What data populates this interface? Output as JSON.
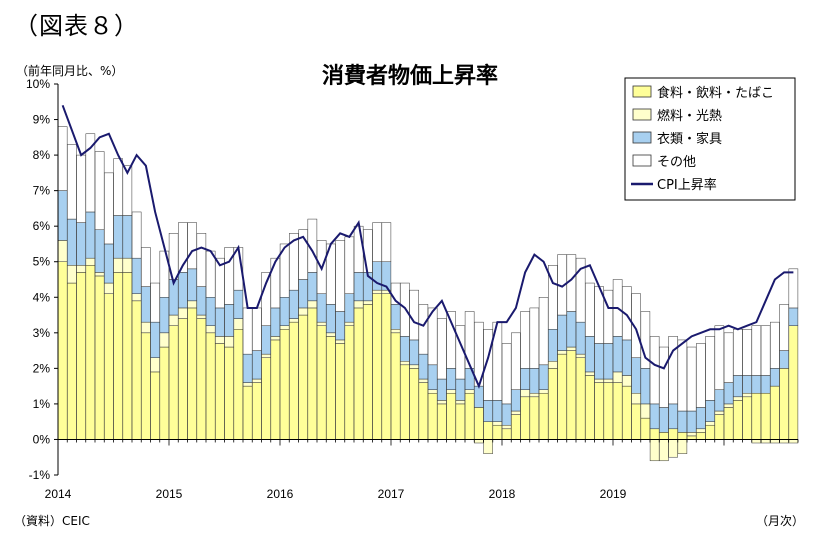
{
  "figure_label": "（図表８）",
  "source_note": "（資料）CEIC",
  "x_unit_note": "（月次）",
  "chart_data": {
    "type": "bar",
    "stacked": true,
    "title": "消費者物価上昇率",
    "ylabel": "（前年同月比、%）",
    "xlabel": "",
    "ylim": [
      -1,
      10
    ],
    "y_ticks": [
      "10%",
      "9%",
      "8%",
      "7%",
      "6%",
      "5%",
      "4%",
      "3%",
      "2%",
      "1%",
      "0%",
      "-1%"
    ],
    "x_ticks": [
      "2014",
      "2015",
      "2016",
      "2017",
      "2018",
      "2019"
    ],
    "grid": false,
    "legend_position": "top-right",
    "series": [
      {
        "name": "食料・飲料・たばこ",
        "color": "#ffff99",
        "kind": "bar",
        "values": [
          5.0,
          4.4,
          4.7,
          4.9,
          4.6,
          4.1,
          4.7,
          4.7,
          3.9,
          3.0,
          1.9,
          2.6,
          3.2,
          3.4,
          3.7,
          3.4,
          3.0,
          2.7,
          2.6,
          3.1,
          1.5,
          1.6,
          2.3,
          2.8,
          3.1,
          3.3,
          3.5,
          3.7,
          3.2,
          2.9,
          2.7,
          3.2,
          3.7,
          3.8,
          4.1,
          4.1,
          3.0,
          2.1,
          2.0,
          1.6,
          1.3,
          1.0,
          1.3,
          1.0,
          1.3,
          0.9,
          0.5,
          0.4,
          0.3,
          0.7,
          1.2,
          1.2,
          1.3,
          2.0,
          2.4,
          2.5,
          2.3,
          1.8,
          1.6,
          1.6,
          1.6,
          1.5,
          1.0,
          0.6,
          0.3,
          0.2,
          0.3,
          0.2,
          0.1,
          0.2,
          0.4,
          0.7,
          0.9,
          1.1,
          1.2,
          1.3,
          1.3,
          1.5,
          2.0,
          3.2
        ]
      },
      {
        "name": "燃料・光熱",
        "color": "#ffffcc",
        "kind": "bar",
        "values": [
          0.6,
          0.5,
          0.2,
          0.2,
          0.1,
          0.3,
          0.4,
          0.4,
          0.2,
          0.3,
          0.4,
          0.4,
          0.3,
          0.3,
          0.2,
          0.1,
          0.2,
          0.2,
          0.3,
          0.3,
          0.1,
          0.1,
          0.1,
          0.1,
          0.1,
          0.1,
          0.2,
          0.2,
          0.1,
          0.1,
          0.1,
          0.1,
          0.2,
          0.1,
          0.1,
          0.1,
          0.1,
          0.1,
          0.1,
          0.1,
          0.1,
          0.1,
          0.1,
          0.1,
          0.1,
          -0.1,
          -0.4,
          0.1,
          0.1,
          0.1,
          0.2,
          0.1,
          0.1,
          0.2,
          0.1,
          0.1,
          0.1,
          0.1,
          0.1,
          0.1,
          0.3,
          0.3,
          0.3,
          0.4,
          -0.6,
          -0.6,
          -0.5,
          -0.4,
          0.1,
          0.1,
          0.1,
          0.1,
          0.1,
          0.1,
          0.1,
          -0.1,
          -0.1,
          -0.1,
          -0.1,
          -0.1
        ]
      },
      {
        "name": "衣類・家具",
        "color": "#a8d0f0",
        "kind": "bar",
        "values": [
          1.4,
          1.3,
          1.2,
          1.3,
          1.2,
          1.1,
          1.2,
          1.2,
          1.0,
          1.0,
          1.0,
          1.0,
          1.0,
          1.0,
          0.9,
          0.8,
          0.8,
          0.8,
          0.9,
          0.8,
          0.8,
          0.8,
          0.8,
          0.8,
          0.8,
          0.8,
          0.8,
          0.8,
          0.8,
          0.8,
          0.8,
          0.8,
          0.8,
          0.8,
          0.8,
          0.8,
          0.7,
          0.7,
          0.7,
          0.7,
          0.7,
          0.6,
          0.6,
          0.6,
          0.6,
          0.6,
          0.6,
          0.6,
          0.6,
          0.6,
          0.6,
          0.7,
          0.7,
          0.9,
          1.0,
          1.0,
          0.9,
          1.0,
          1.0,
          1.0,
          1.0,
          1.0,
          1.0,
          1.0,
          0.7,
          0.7,
          0.7,
          0.6,
          0.6,
          0.6,
          0.6,
          0.6,
          0.6,
          0.6,
          0.5,
          0.5,
          0.5,
          0.5,
          0.5,
          0.5
        ]
      },
      {
        "name": "その他",
        "color": "#ffffff",
        "kind": "bar",
        "values": [
          1.8,
          2.1,
          1.9,
          2.2,
          2.2,
          2.0,
          1.6,
          1.4,
          1.3,
          1.1,
          1.1,
          1.3,
          1.3,
          1.4,
          1.3,
          1.5,
          1.3,
          1.4,
          1.6,
          1.2,
          1.3,
          1.2,
          1.5,
          1.4,
          1.5,
          1.6,
          1.4,
          1.5,
          1.5,
          1.7,
          2.0,
          1.6,
          1.3,
          1.2,
          1.1,
          1.1,
          0.6,
          1.5,
          1.4,
          1.4,
          1.6,
          1.7,
          1.6,
          1.5,
          1.6,
          1.8,
          2.0,
          2.2,
          1.7,
          1.6,
          1.6,
          1.7,
          1.9,
          1.8,
          1.7,
          1.6,
          1.8,
          1.5,
          1.6,
          1.5,
          1.6,
          1.5,
          1.8,
          1.6,
          1.9,
          1.7,
          1.9,
          2.0,
          1.8,
          1.8,
          1.8,
          1.8,
          1.4,
          1.3,
          1.3,
          1.4,
          1.4,
          1.3,
          1.3,
          1.1
        ]
      },
      {
        "name": "CPI上昇率",
        "color": "#1a1a6e",
        "kind": "line",
        "values": [
          9.4,
          8.7,
          8.0,
          8.2,
          8.5,
          8.6,
          8.0,
          7.5,
          8.0,
          7.7,
          6.4,
          5.4,
          4.4,
          4.9,
          5.3,
          5.4,
          5.3,
          4.9,
          5.0,
          5.4,
          3.7,
          3.7,
          4.4,
          5.0,
          5.4,
          5.6,
          5.7,
          5.3,
          4.8,
          5.5,
          5.8,
          5.7,
          6.1,
          4.6,
          4.4,
          4.3,
          3.9,
          3.7,
          3.3,
          3.2,
          3.6,
          3.9,
          3.3,
          2.7,
          2.1,
          1.5,
          2.3,
          3.3,
          3.3,
          3.7,
          4.7,
          5.2,
          5.0,
          4.4,
          4.3,
          4.5,
          4.8,
          4.9,
          4.3,
          3.7,
          3.7,
          3.5,
          3.1,
          2.3,
          2.1,
          2.0,
          2.5,
          2.7,
          2.9,
          3.0,
          3.1,
          3.1,
          3.2,
          3.1,
          3.2,
          3.3,
          3.9,
          4.5,
          4.7,
          4.7
        ]
      }
    ]
  }
}
